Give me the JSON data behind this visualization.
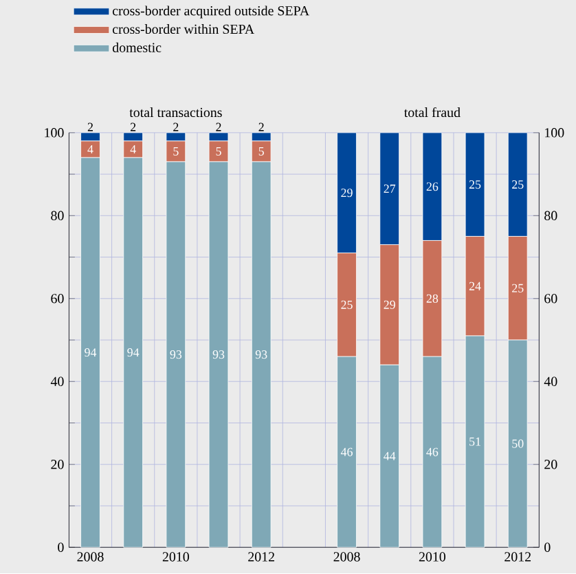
{
  "chart_data": {
    "type": "bar",
    "stacked": true,
    "categories": [
      "2008",
      null,
      "2010",
      null,
      "2012",
      null,
      "2008",
      null,
      "2010",
      null,
      "2012"
    ],
    "series": [
      {
        "name": "domestic",
        "color": "#7fa8b6",
        "values": [
          94,
          94,
          93,
          93,
          93,
          null,
          46,
          44,
          46,
          51,
          50
        ]
      },
      {
        "name": "cross-border within SEPA",
        "color": "#c9705a",
        "values": [
          4,
          4,
          5,
          5,
          5,
          null,
          25,
          29,
          28,
          24,
          25
        ]
      },
      {
        "name": "cross-border acquired outside SEPA",
        "color": "#00479a",
        "values": [
          2,
          2,
          2,
          2,
          2,
          null,
          29,
          27,
          26,
          25,
          25
        ]
      }
    ],
    "annotations": [
      "total transactions",
      "total fraud"
    ],
    "ylim": [
      0,
      100
    ],
    "yticks": [
      0,
      {
        "value": 10,
        "label": null
      },
      20,
      {
        "value": 30,
        "label": null
      },
      40,
      {
        "value": 50,
        "label": null
      },
      60,
      {
        "value": 70,
        "label": null
      },
      80,
      {
        "value": 90,
        "label": null
      },
      100
    ],
    "y2lim": [
      0,
      100
    ],
    "y2ticks": [
      0,
      20,
      40,
      60,
      80,
      100
    ],
    "grid": true,
    "legend": "top",
    "data_labels": true
  }
}
